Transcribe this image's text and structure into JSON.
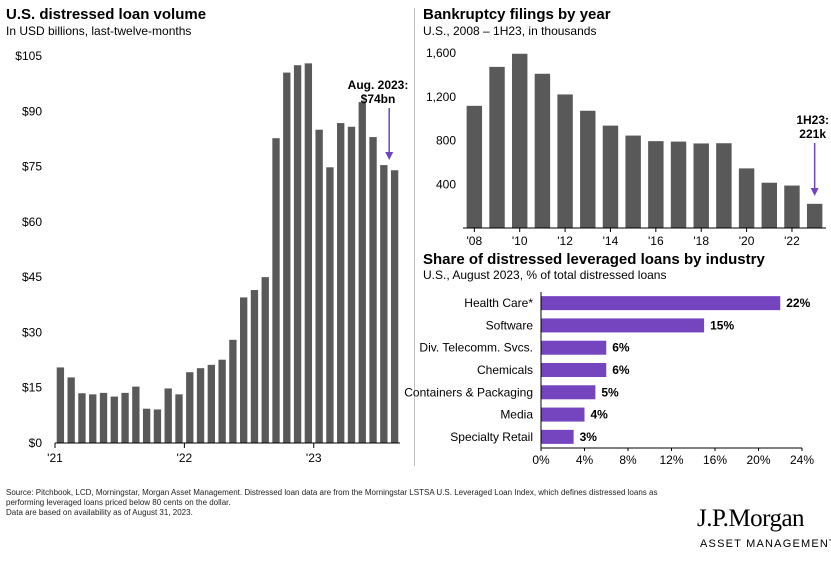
{
  "colors": {
    "bar": "#595959",
    "accent": "#6f46bd",
    "purple_bar": "#7544bf"
  },
  "footer": {
    "line1": "Source: Pitchbook,  LCD,  Morningstar, Morgan Asset Management. Distressed loan data are from the Morningstar LSTSA U.S. Leveraged Loan Index, which defines distressed loans as",
    "line2": "performing leveraged loans priced below 80 cents on the dollar.",
    "line3": "Data are based on availability as of August 31, 2023."
  },
  "logo": {
    "main": "J.P.Morgan",
    "sub": "ASSET MANAGEMENT"
  },
  "chart_data": [
    {
      "type": "bar",
      "title": "U.S. distressed loan volume",
      "subtitle": "In USD billions, last-twelve-months",
      "ylim": [
        0,
        105
      ],
      "yticks": [
        0,
        15,
        30,
        45,
        60,
        75,
        90,
        105
      ],
      "ytick_labels": [
        "$0",
        "$15",
        "$30",
        "$45",
        "$60",
        "$75",
        "$90",
        "$105"
      ],
      "x_tick_labels": [
        "'21",
        "'22",
        "'23"
      ],
      "values": [
        20.5,
        17.8,
        13.5,
        13.2,
        13.6,
        12.6,
        13.6,
        15.3,
        9.3,
        9.1,
        14.8,
        13.2,
        19.2,
        20.3,
        21.2,
        22.6,
        28.0,
        39.5,
        41.5,
        45.0,
        82.7,
        100.5,
        102.5,
        103.0,
        85.0,
        74.8,
        86.8,
        85.8,
        92.5,
        83.0,
        75.4,
        74.0
      ],
      "annotation": {
        "line1": "Aug. 2023:",
        "line2": "$74bn"
      }
    },
    {
      "type": "bar",
      "title": "Bankruptcy filings by year",
      "subtitle": "U.S., 2008 – 1H23, in thousands",
      "ylim": [
        0,
        1600
      ],
      "yticks": [
        0,
        400,
        800,
        1200,
        1600
      ],
      "ytick_labels": [
        "",
        "400",
        "800",
        "1,200",
        "1,600"
      ],
      "categories": [
        "2008",
        "2009",
        "2010",
        "2011",
        "2012",
        "2013",
        "2014",
        "2015",
        "2016",
        "2017",
        "2018",
        "2019",
        "2020",
        "2021",
        "2022",
        "1H23"
      ],
      "x_tick_labels": [
        "'08",
        "'10",
        "'12",
        "'14",
        "'16",
        "'18",
        "'20",
        "'22"
      ],
      "values": [
        1117,
        1473,
        1593,
        1410,
        1221,
        1072,
        936,
        845,
        794,
        790,
        773,
        775,
        545,
        414,
        388,
        221
      ],
      "annotation": {
        "line1": "1H23:",
        "line2": "221k"
      }
    },
    {
      "type": "bar",
      "orientation": "horizontal",
      "title": "Share of distressed leveraged loans by industry",
      "subtitle": "U.S., August 2023, % of total distressed loans",
      "xlim": [
        0,
        24
      ],
      "xticks": [
        0,
        4,
        8,
        12,
        16,
        20,
        24
      ],
      "xtick_labels": [
        "0%",
        "4%",
        "8%",
        "12%",
        "16%",
        "20%",
        "24%"
      ],
      "categories": [
        "Health Care*",
        "Software",
        "Div. Telecomm. Svcs.",
        "Chemicals",
        "Containers & Packaging",
        "Media",
        "Specialty Retail"
      ],
      "values": [
        22,
        15,
        6,
        6,
        5,
        4,
        3
      ],
      "value_labels": [
        "22%",
        "15%",
        "6%",
        "6%",
        "5%",
        "4%",
        "3%"
      ]
    }
  ]
}
